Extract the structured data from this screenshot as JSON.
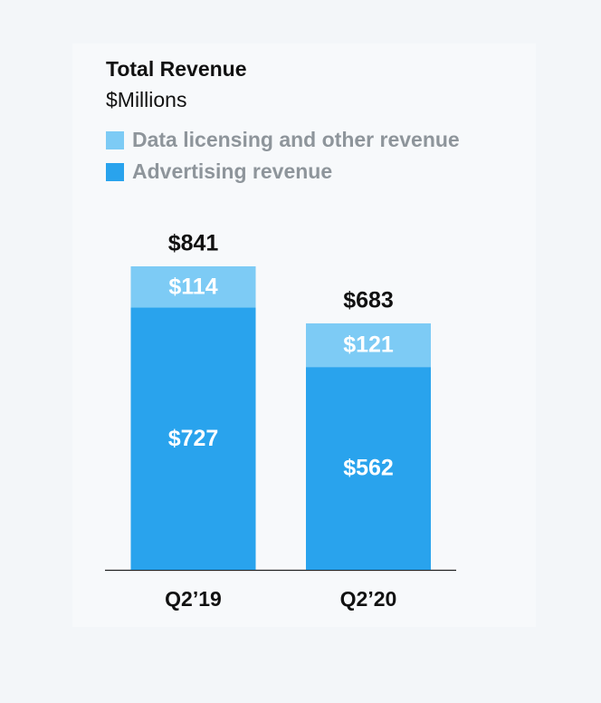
{
  "chart_data": {
    "type": "stacked-bar",
    "title": "Total Revenue",
    "subtitle": "$Millions",
    "categories": [
      "Q2’19",
      "Q2’20"
    ],
    "series": [
      {
        "name": "Advertising revenue",
        "color": "#29a3ed",
        "values": [
          727,
          562
        ],
        "value_labels": [
          "$727",
          "$562"
        ]
      },
      {
        "name": "Data licensing and other revenue",
        "color": "#7dcbf5",
        "values": [
          114,
          121
        ],
        "value_labels": [
          "$114",
          "$121"
        ]
      }
    ],
    "totals": [
      841,
      683
    ],
    "total_labels": [
      "$841",
      "$683"
    ]
  }
}
